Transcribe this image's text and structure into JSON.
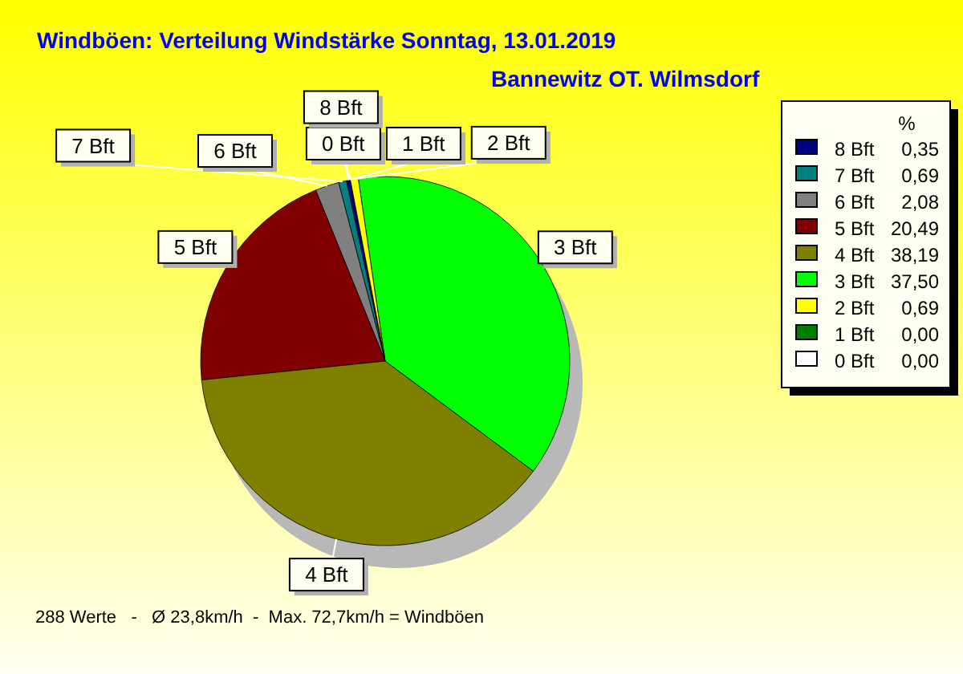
{
  "chart_data": {
    "type": "pie",
    "title": "Windböen: Verteilung Windstärke  Sonntag, 13.01.2019",
    "subtitle": "Bannewitz OT. Wilmsdorf",
    "categories": [
      "8 Bft",
      "7 Bft",
      "6 Bft",
      "5 Bft",
      "4 Bft",
      "3 Bft",
      "2 Bft",
      "1 Bft",
      "0 Bft"
    ],
    "values": [
      0.35,
      0.69,
      2.08,
      20.49,
      38.19,
      37.5,
      0.69,
      0.0,
      0.0
    ],
    "value_labels": [
      "0,35",
      "0,69",
      "2,08",
      "20,49",
      "38,19",
      "37,50",
      "0,69",
      "0,00",
      "0,00"
    ],
    "colors": [
      "#000080",
      "#008080",
      "#808080",
      "#800000",
      "#808000",
      "#00ff00",
      "#ffff00",
      "#008000",
      "#ffffff"
    ],
    "legend_title": "%",
    "legend": "right",
    "annotations": [
      "288 Werte   -   Ø 23,8km/h  -  Max. 72,7km/h = Windböen"
    ]
  }
}
